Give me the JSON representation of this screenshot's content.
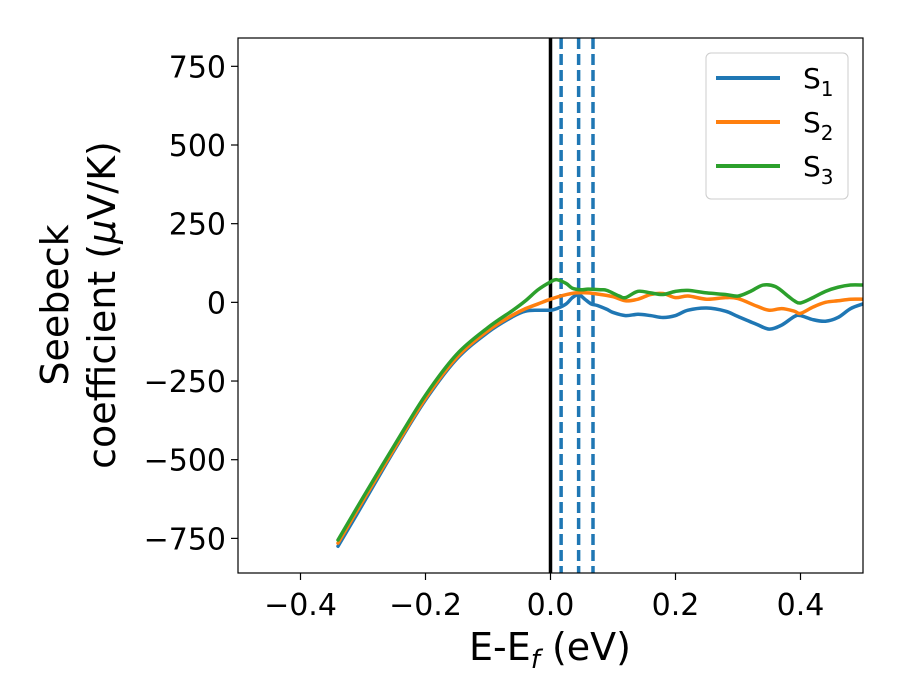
{
  "chart_data": {
    "type": "line",
    "xlabel": {
      "main": "E-E",
      "sub": "f",
      "unit": " (eV)"
    },
    "ylabel": {
      "line1": "Seebeck",
      "line2_pre": "coefficient  (",
      "mu": "μ",
      "line2_post": "V/K)"
    },
    "xlim": [
      -0.5,
      0.5
    ],
    "ylim": [
      -860,
      840
    ],
    "x_ticks": [
      -0.4,
      -0.2,
      0.0,
      0.2,
      0.4
    ],
    "x_tick_labels": [
      "−0.4",
      "−0.2",
      "0.0",
      "0.2",
      "0.4"
    ],
    "y_ticks": [
      750,
      500,
      250,
      0,
      -250,
      -500,
      -750
    ],
    "y_tick_labels": [
      "750",
      "500",
      "250",
      "0",
      "−250",
      "−500",
      "−750"
    ],
    "grid": false,
    "legend_position": "top-right",
    "vertical_lines": [
      {
        "x": 0.0,
        "style": "solid",
        "color": "#000000"
      },
      {
        "x": 0.017,
        "style": "dashed",
        "color": "#1f77b4"
      },
      {
        "x": 0.045,
        "style": "dashed",
        "color": "#1f77b4"
      },
      {
        "x": 0.068,
        "style": "dashed",
        "color": "#1f77b4"
      }
    ],
    "series": [
      {
        "name": "S",
        "sub": "1",
        "color": "#1f77b4",
        "points": [
          [
            -0.34,
            -775
          ],
          [
            -0.3,
            -640
          ],
          [
            -0.25,
            -470
          ],
          [
            -0.2,
            -310
          ],
          [
            -0.15,
            -180
          ],
          [
            -0.1,
            -95
          ],
          [
            -0.06,
            -45
          ],
          [
            -0.04,
            -28
          ],
          [
            -0.02,
            -25
          ],
          [
            0.0,
            -25
          ],
          [
            0.01,
            -20
          ],
          [
            0.025,
            -5
          ],
          [
            0.035,
            15
          ],
          [
            0.045,
            25
          ],
          [
            0.055,
            10
          ],
          [
            0.065,
            -5
          ],
          [
            0.075,
            -10
          ],
          [
            0.09,
            -22
          ],
          [
            0.1,
            -32
          ],
          [
            0.12,
            -42
          ],
          [
            0.14,
            -38
          ],
          [
            0.16,
            -42
          ],
          [
            0.18,
            -48
          ],
          [
            0.2,
            -42
          ],
          [
            0.22,
            -25
          ],
          [
            0.25,
            -18
          ],
          [
            0.28,
            -28
          ],
          [
            0.3,
            -45
          ],
          [
            0.33,
            -70
          ],
          [
            0.35,
            -85
          ],
          [
            0.37,
            -72
          ],
          [
            0.39,
            -45
          ],
          [
            0.4,
            -42
          ],
          [
            0.42,
            -55
          ],
          [
            0.44,
            -60
          ],
          [
            0.46,
            -48
          ],
          [
            0.48,
            -20
          ],
          [
            0.5,
            -5
          ]
        ]
      },
      {
        "name": "S",
        "sub": "2",
        "color": "#ff7f0e",
        "points": [
          [
            -0.34,
            -765
          ],
          [
            -0.3,
            -630
          ],
          [
            -0.25,
            -465
          ],
          [
            -0.2,
            -305
          ],
          [
            -0.15,
            -175
          ],
          [
            -0.1,
            -90
          ],
          [
            -0.06,
            -40
          ],
          [
            -0.04,
            -20
          ],
          [
            -0.02,
            -5
          ],
          [
            0.0,
            10
          ],
          [
            0.02,
            22
          ],
          [
            0.04,
            30
          ],
          [
            0.06,
            30
          ],
          [
            0.08,
            25
          ],
          [
            0.1,
            18
          ],
          [
            0.12,
            5
          ],
          [
            0.14,
            10
          ],
          [
            0.16,
            25
          ],
          [
            0.18,
            28
          ],
          [
            0.2,
            15
          ],
          [
            0.22,
            20
          ],
          [
            0.25,
            10
          ],
          [
            0.28,
            15
          ],
          [
            0.3,
            12
          ],
          [
            0.33,
            -12
          ],
          [
            0.35,
            -25
          ],
          [
            0.37,
            -20
          ],
          [
            0.39,
            -28
          ],
          [
            0.4,
            -35
          ],
          [
            0.42,
            -15
          ],
          [
            0.44,
            0
          ],
          [
            0.46,
            5
          ],
          [
            0.48,
            10
          ],
          [
            0.5,
            10
          ]
        ]
      },
      {
        "name": "S",
        "sub": "3",
        "color": "#2ca02c",
        "points": [
          [
            -0.34,
            -755
          ],
          [
            -0.3,
            -620
          ],
          [
            -0.25,
            -455
          ],
          [
            -0.2,
            -295
          ],
          [
            -0.15,
            -165
          ],
          [
            -0.1,
            -80
          ],
          [
            -0.06,
            -25
          ],
          [
            -0.04,
            5
          ],
          [
            -0.02,
            40
          ],
          [
            0.0,
            65
          ],
          [
            0.01,
            72
          ],
          [
            0.025,
            60
          ],
          [
            0.035,
            45
          ],
          [
            0.05,
            40
          ],
          [
            0.06,
            42
          ],
          [
            0.08,
            40
          ],
          [
            0.09,
            38
          ],
          [
            0.11,
            20
          ],
          [
            0.12,
            15
          ],
          [
            0.14,
            35
          ],
          [
            0.16,
            30
          ],
          [
            0.18,
            25
          ],
          [
            0.2,
            35
          ],
          [
            0.22,
            38
          ],
          [
            0.25,
            30
          ],
          [
            0.28,
            25
          ],
          [
            0.3,
            20
          ],
          [
            0.32,
            35
          ],
          [
            0.34,
            55
          ],
          [
            0.36,
            50
          ],
          [
            0.38,
            20
          ],
          [
            0.39,
            5
          ],
          [
            0.4,
            -2
          ],
          [
            0.42,
            15
          ],
          [
            0.44,
            35
          ],
          [
            0.46,
            48
          ],
          [
            0.48,
            55
          ],
          [
            0.5,
            55
          ]
        ]
      }
    ]
  }
}
